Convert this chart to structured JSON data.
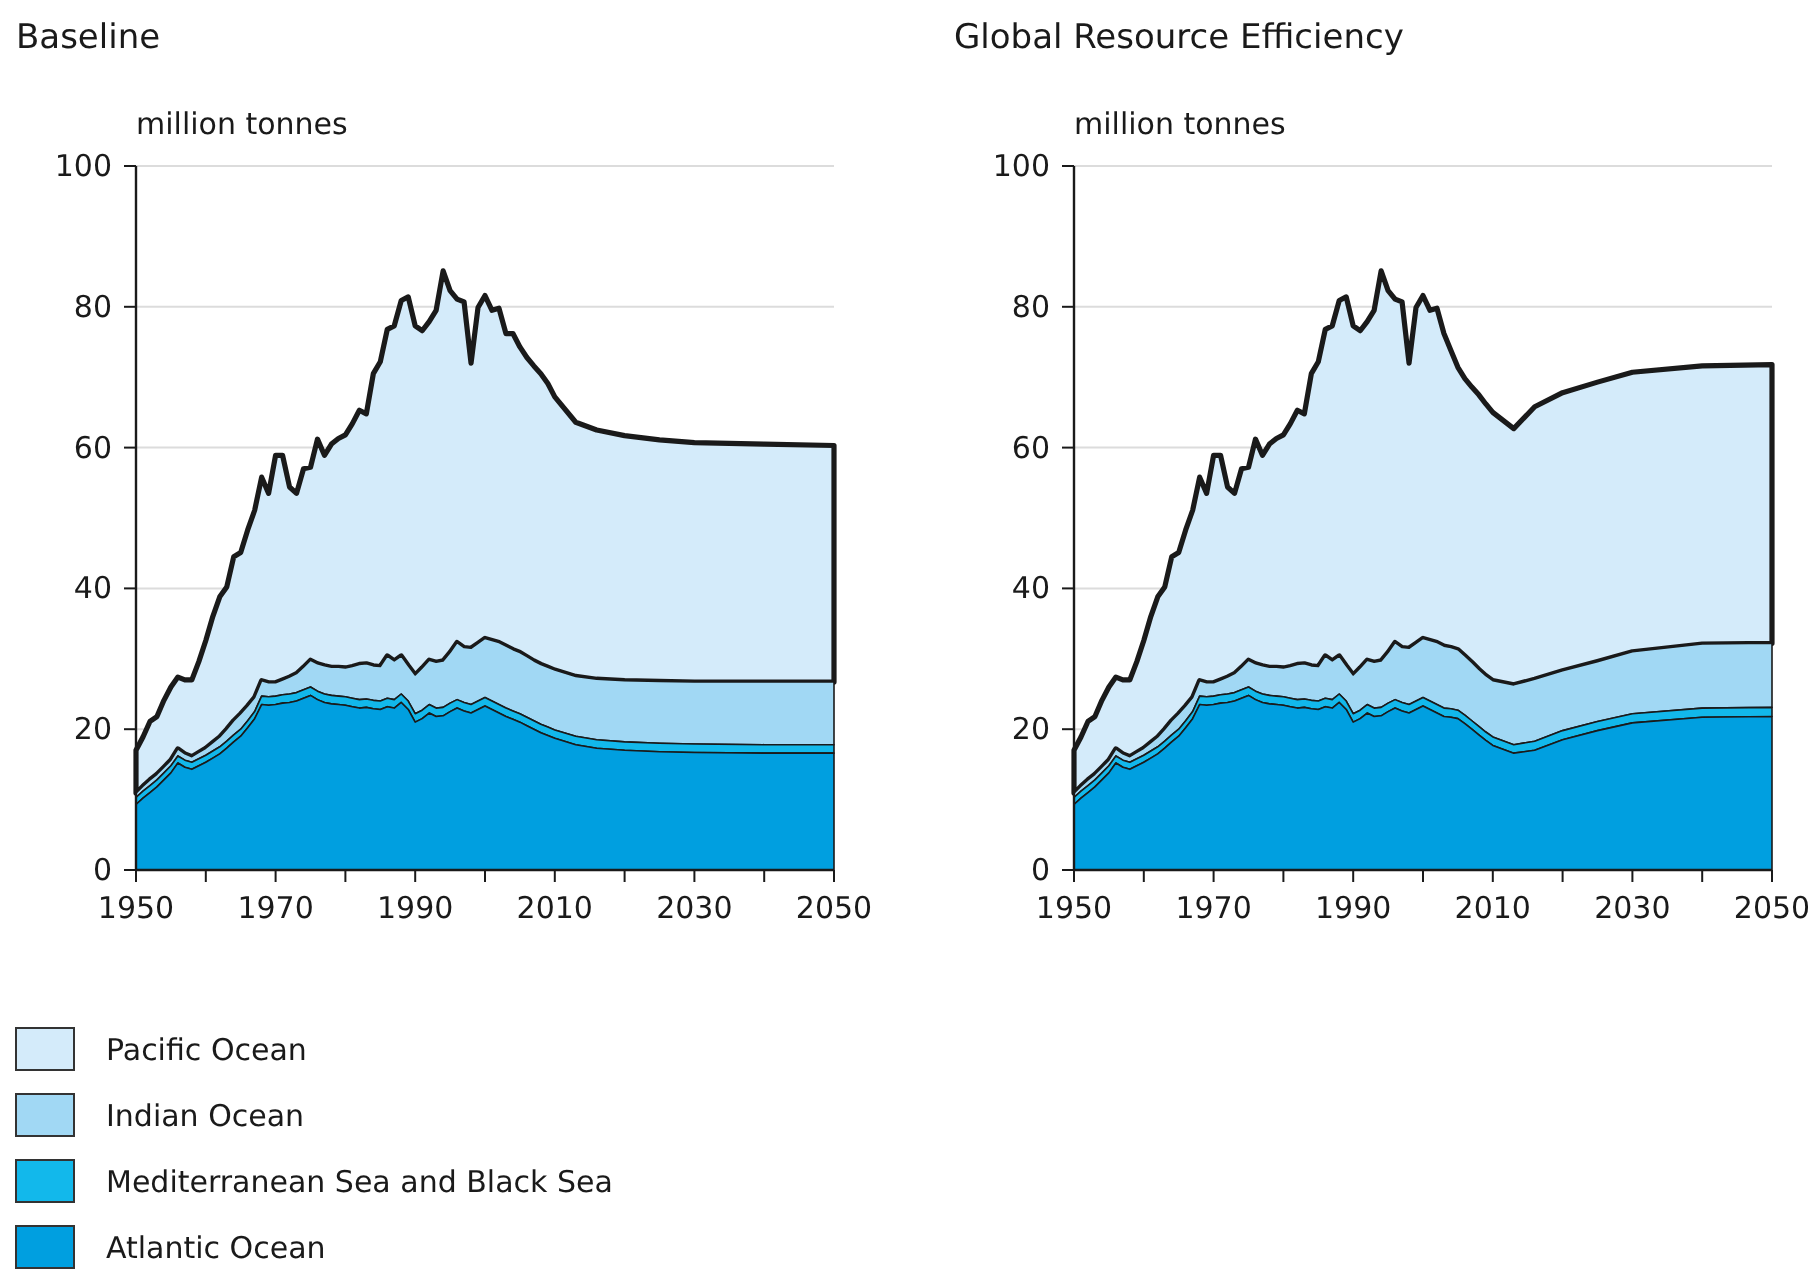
{
  "chart_data": [
    {
      "type": "area",
      "title": "Baseline",
      "ylabel": "million tonnes",
      "stacked": true,
      "grid": "y",
      "legend": "bottom left",
      "ylim": [
        0,
        100
      ],
      "yticks": [
        0,
        20,
        40,
        60,
        80,
        100
      ],
      "xlim": [
        1950,
        2050
      ],
      "xticks": [
        1950,
        {
          "value": 1960,
          "label": null
        },
        1970,
        {
          "value": 1980,
          "label": null
        },
        1990,
        {
          "value": 2000,
          "label": null
        },
        2010,
        {
          "value": 2020,
          "label": null
        },
        2030,
        {
          "value": 2040,
          "label": null
        },
        2050
      ],
      "x": [
        1950,
        1951,
        1952,
        1953,
        1954,
        1955,
        1956,
        1957,
        1958,
        1959,
        1960,
        1961,
        1962,
        1963,
        1964,
        1965,
        1966,
        1967,
        1968,
        1969,
        1970,
        1971,
        1972,
        1973,
        1974,
        1975,
        1976,
        1977,
        1978,
        1979,
        1980,
        1981,
        1982,
        1983,
        1984,
        1985,
        1986,
        1987,
        1988,
        1989,
        1990,
        1991,
        1992,
        1993,
        1994,
        1995,
        1996,
        1997,
        1998,
        1999,
        2000,
        2001,
        2002,
        2003,
        2004,
        2005,
        2006,
        2007,
        2008,
        2009,
        2010,
        2013,
        2016,
        2020,
        2025,
        2030,
        2040,
        2050
      ],
      "series": [
        {
          "name": "Atlantic Ocean",
          "color": "#009fe0",
          "values": [
            9.3,
            10.2,
            11.0,
            11.8,
            12.8,
            13.8,
            15.2,
            14.6,
            14.3,
            14.8,
            15.3,
            15.9,
            16.5,
            17.3,
            18.2,
            19.0,
            20.2,
            21.5,
            23.5,
            23.4,
            23.5,
            23.7,
            23.8,
            24.0,
            24.4,
            24.8,
            24.2,
            23.8,
            23.6,
            23.5,
            23.4,
            23.2,
            23.0,
            23.1,
            22.9,
            22.8,
            23.2,
            23.0,
            23.8,
            22.8,
            21.0,
            21.5,
            22.3,
            21.8,
            21.9,
            22.5,
            23.0,
            22.6,
            22.3,
            22.8,
            23.3,
            22.8,
            22.3,
            21.8,
            21.4,
            21.0,
            20.5,
            20.0,
            19.5,
            19.1,
            18.7,
            17.8,
            17.3,
            17.0,
            16.8,
            16.7,
            16.6,
            16.6
          ]
        },
        {
          "name": "Mediterranean Sea and Black Sea",
          "color": "#12b8eb",
          "values": [
            1.0,
            1.0,
            1.0,
            1.0,
            1.0,
            1.0,
            1.0,
            1.0,
            1.0,
            1.0,
            1.0,
            1.0,
            1.0,
            1.0,
            1.0,
            1.0,
            1.0,
            1.0,
            1.2,
            1.2,
            1.2,
            1.2,
            1.2,
            1.2,
            1.2,
            1.2,
            1.2,
            1.2,
            1.2,
            1.2,
            1.2,
            1.2,
            1.2,
            1.2,
            1.2,
            1.2,
            1.2,
            1.2,
            1.2,
            1.2,
            1.2,
            1.2,
            1.2,
            1.2,
            1.2,
            1.2,
            1.2,
            1.2,
            1.2,
            1.2,
            1.2,
            1.2,
            1.2,
            1.2,
            1.2,
            1.2,
            1.2,
            1.2,
            1.2,
            1.2,
            1.2,
            1.2,
            1.2,
            1.2,
            1.2,
            1.2,
            1.2,
            1.2
          ]
        },
        {
          "name": "Indian Ocean",
          "color": "#a1d8f4",
          "values": [
            0.6,
            0.7,
            0.8,
            0.8,
            0.8,
            0.8,
            1.0,
            0.9,
            0.8,
            0.9,
            1.0,
            1.2,
            1.4,
            1.7,
            2.0,
            2.2,
            2.1,
            2.0,
            2.2,
            2.0,
            1.9,
            2.1,
            2.4,
            2.7,
            3.2,
            3.8,
            3.9,
            4.0,
            4.0,
            4.1,
            4.1,
            4.5,
            5.0,
            5.0,
            4.9,
            4.9,
            6.0,
            5.5,
            5.4,
            5.0,
            5.5,
            6.0,
            6.3,
            6.5,
            6.6,
            7.2,
            8.1,
            7.8,
            8.0,
            8.2,
            8.4,
            8.6,
            8.8,
            8.8,
            8.7,
            8.7,
            8.6,
            8.5,
            8.5,
            8.5,
            8.5,
            8.5,
            8.6,
            8.7,
            8.8,
            8.8,
            8.9,
            8.9
          ]
        },
        {
          "name": "Pacific Ocean",
          "color": "#d4ebfa",
          "values": [
            6.1,
            7.0,
            8.3,
            8.2,
            9.5,
            10.4,
            10.2,
            10.5,
            10.9,
            12.9,
            15.3,
            17.9,
            19.9,
            20.2,
            23.3,
            22.9,
            25.0,
            26.6,
            28.9,
            26.9,
            32.3,
            31.9,
            27.0,
            25.6,
            28.2,
            27.4,
            31.9,
            29.9,
            31.7,
            32.5,
            33.1,
            34.5,
            36.1,
            35.5,
            41.5,
            43.3,
            46.4,
            47.6,
            50.5,
            52.4,
            49.6,
            47.9,
            48.1,
            50.0,
            55.4,
            51.4,
            48.8,
            49.1,
            40.5,
            47.7,
            48.7,
            46.9,
            47.5,
            44.4,
            44.9,
            43.4,
            42.5,
            41.9,
            41.3,
            40.3,
            38.8,
            36.1,
            35.4,
            34.8,
            34.3,
            34.0,
            33.8,
            33.6
          ]
        }
      ]
    },
    {
      "type": "area",
      "title": "Global Resource Efficiency",
      "ylabel": "million tonnes",
      "stacked": true,
      "grid": "y",
      "ylim": [
        0,
        100
      ],
      "yticks": [
        0,
        20,
        40,
        60,
        80,
        100
      ],
      "xlim": [
        1950,
        2050
      ],
      "xticks": [
        1950,
        {
          "value": 1960,
          "label": null
        },
        1970,
        {
          "value": 1980,
          "label": null
        },
        1990,
        {
          "value": 2000,
          "label": null
        },
        2010,
        {
          "value": 2020,
          "label": null
        },
        2030,
        {
          "value": 2040,
          "label": null
        },
        2050
      ],
      "x": [
        1950,
        1951,
        1952,
        1953,
        1954,
        1955,
        1956,
        1957,
        1958,
        1959,
        1960,
        1961,
        1962,
        1963,
        1964,
        1965,
        1966,
        1967,
        1968,
        1969,
        1970,
        1971,
        1972,
        1973,
        1974,
        1975,
        1976,
        1977,
        1978,
        1979,
        1980,
        1981,
        1982,
        1983,
        1984,
        1985,
        1986,
        1987,
        1988,
        1989,
        1990,
        1991,
        1992,
        1993,
        1994,
        1995,
        1996,
        1997,
        1998,
        1999,
        2000,
        2001,
        2002,
        2003,
        2004,
        2005,
        2006,
        2007,
        2008,
        2009,
        2010,
        2013,
        2016,
        2020,
        2025,
        2030,
        2040,
        2050
      ],
      "series": [
        {
          "color": "#009fe0",
          "values": [
            9.3,
            10.2,
            11.0,
            11.8,
            12.8,
            13.8,
            15.2,
            14.6,
            14.3,
            14.8,
            15.3,
            15.9,
            16.5,
            17.3,
            18.2,
            19.0,
            20.2,
            21.5,
            23.5,
            23.4,
            23.5,
            23.7,
            23.8,
            24.0,
            24.4,
            24.8,
            24.2,
            23.8,
            23.6,
            23.5,
            23.4,
            23.2,
            23.0,
            23.1,
            22.9,
            22.8,
            23.2,
            23.0,
            23.8,
            22.8,
            21.0,
            21.5,
            22.3,
            21.8,
            21.9,
            22.5,
            23.0,
            22.6,
            22.3,
            22.8,
            23.3,
            22.8,
            22.3,
            21.8,
            21.7,
            21.5,
            20.8,
            20.0,
            19.2,
            18.4,
            17.7,
            16.6,
            17.0,
            18.5,
            19.8,
            20.9,
            21.7,
            21.8
          ]
        },
        {
          "color": "#12b8eb",
          "values": [
            1.0,
            1.0,
            1.0,
            1.0,
            1.0,
            1.0,
            1.0,
            1.0,
            1.0,
            1.0,
            1.0,
            1.0,
            1.0,
            1.0,
            1.0,
            1.0,
            1.0,
            1.0,
            1.2,
            1.2,
            1.2,
            1.2,
            1.2,
            1.2,
            1.2,
            1.2,
            1.2,
            1.2,
            1.2,
            1.2,
            1.2,
            1.2,
            1.2,
            1.2,
            1.2,
            1.2,
            1.2,
            1.2,
            1.2,
            1.2,
            1.2,
            1.2,
            1.2,
            1.2,
            1.2,
            1.2,
            1.2,
            1.2,
            1.2,
            1.2,
            1.2,
            1.2,
            1.2,
            1.2,
            1.2,
            1.2,
            1.2,
            1.2,
            1.2,
            1.2,
            1.2,
            1.2,
            1.3,
            1.3,
            1.3,
            1.3,
            1.3,
            1.3
          ]
        },
        {
          "color": "#a1d8f4",
          "values": [
            0.6,
            0.7,
            0.8,
            0.8,
            0.8,
            0.8,
            1.0,
            0.9,
            0.8,
            0.9,
            1.0,
            1.2,
            1.4,
            1.7,
            2.0,
            2.2,
            2.1,
            2.0,
            2.2,
            2.0,
            1.9,
            2.1,
            2.4,
            2.7,
            3.2,
            3.8,
            3.9,
            4.0,
            4.0,
            4.1,
            4.1,
            4.5,
            5.0,
            5.0,
            4.9,
            4.9,
            6.0,
            5.5,
            5.4,
            5.0,
            5.5,
            6.0,
            6.3,
            6.5,
            6.6,
            7.2,
            8.1,
            7.8,
            8.0,
            8.2,
            8.4,
            8.6,
            8.8,
            8.8,
            8.7,
            8.6,
            8.4,
            8.3,
            8.1,
            8.0,
            8.0,
            8.5,
            8.8,
            8.5,
            8.5,
            8.8,
            9.1,
            9.1
          ]
        },
        {
          "color": "#d4ebfa",
          "values": [
            6.1,
            7.0,
            8.3,
            8.2,
            9.5,
            10.4,
            10.2,
            10.5,
            10.9,
            12.9,
            15.3,
            17.9,
            19.9,
            20.2,
            23.3,
            22.9,
            25.0,
            26.6,
            28.9,
            26.9,
            32.3,
            31.9,
            27.0,
            25.6,
            28.2,
            27.4,
            31.9,
            29.9,
            31.7,
            32.5,
            33.1,
            34.5,
            36.1,
            35.5,
            41.5,
            43.3,
            46.4,
            47.6,
            50.5,
            52.4,
            49.6,
            47.9,
            48.1,
            50.0,
            55.4,
            51.4,
            48.8,
            49.1,
            40.5,
            47.7,
            48.7,
            46.9,
            47.5,
            44.4,
            42.2,
            40.1,
            39.4,
            39.1,
            39.0,
            38.6,
            38.1,
            36.4,
            38.7,
            39.5,
            39.7,
            39.7,
            39.5,
            39.6
          ]
        }
      ]
    }
  ]
}
